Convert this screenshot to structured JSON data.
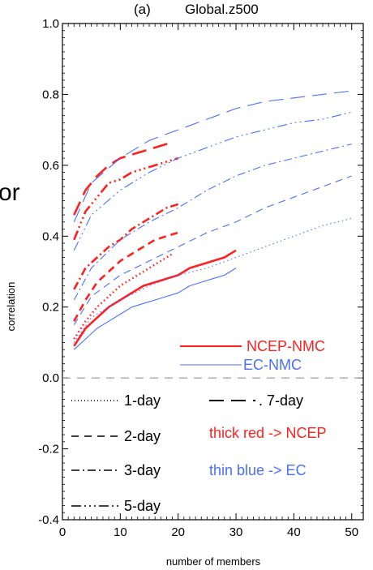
{
  "colors": {
    "ncep": "#ff2020",
    "ec": "#4a6fff",
    "axis": "#000000",
    "zero": "#888888"
  },
  "panel_label": "(a)",
  "overflow_glyph": "or",
  "chart_data": {
    "type": "line",
    "title": "Global.z500",
    "xlabel": "number of members",
    "ylabel": "correlation",
    "xlim": [
      0,
      52
    ],
    "ylim": [
      -0.4,
      1.0
    ],
    "xticks": [
      0,
      10,
      20,
      30,
      40,
      50
    ],
    "yticks": [
      -0.4,
      -0.2,
      0.0,
      0.2,
      0.4,
      0.6,
      0.8,
      1.0
    ],
    "ytick_labels": [
      "-0.4",
      "-0.2",
      "0.0",
      "0.2",
      "0.4",
      "0.6",
      "0.8",
      "1.0"
    ],
    "series": [
      {
        "name": "NCEP-NMC",
        "lead": "1-day",
        "source": "ncep",
        "x": [
          2,
          4,
          6,
          8,
          10,
          12,
          14,
          16,
          18,
          19
        ],
        "y": [
          0.11,
          0.16,
          0.2,
          0.23,
          0.26,
          0.28,
          0.3,
          0.32,
          0.34,
          0.35
        ]
      },
      {
        "name": "NCEP-NMC",
        "lead": "2-day",
        "source": "ncep",
        "x": [
          2,
          4,
          6,
          8,
          10,
          12,
          14,
          16,
          18,
          20
        ],
        "y": [
          0.16,
          0.22,
          0.27,
          0.3,
          0.33,
          0.35,
          0.37,
          0.39,
          0.4,
          0.41
        ]
      },
      {
        "name": "NCEP-NMC",
        "lead": "3-day",
        "source": "ncep",
        "x": [
          2,
          4,
          6,
          8,
          10,
          12,
          14,
          16,
          18,
          20
        ],
        "y": [
          0.25,
          0.31,
          0.34,
          0.37,
          0.39,
          0.42,
          0.44,
          0.46,
          0.48,
          0.49
        ]
      },
      {
        "name": "NCEP-NMC",
        "lead": "5-day",
        "source": "ncep",
        "x": [
          2,
          4,
          6,
          8,
          10,
          12,
          14,
          16,
          18,
          20
        ],
        "y": [
          0.39,
          0.47,
          0.51,
          0.55,
          0.56,
          0.58,
          0.59,
          0.6,
          0.61,
          0.62
        ]
      },
      {
        "name": "NCEP-NMC",
        "lead": "7-day",
        "source": "ncep",
        "x": [
          2,
          4,
          6,
          8,
          10,
          12,
          14,
          16,
          18,
          19
        ],
        "y": [
          0.46,
          0.53,
          0.57,
          0.6,
          0.62,
          0.63,
          0.64,
          0.65,
          0.66,
          0.665
        ]
      },
      {
        "name": "NCEP-NMC",
        "lead": "day1-solid",
        "source": "ncep",
        "x": [
          2,
          4,
          6,
          8,
          10,
          12,
          14,
          16,
          18,
          20,
          22,
          24,
          26,
          28,
          30
        ],
        "y": [
          0.09,
          0.14,
          0.17,
          0.2,
          0.22,
          0.24,
          0.26,
          0.27,
          0.28,
          0.29,
          0.31,
          0.32,
          0.33,
          0.34,
          0.36
        ]
      },
      {
        "name": "EC-NMC",
        "lead": "day1-solid",
        "source": "ec",
        "x": [
          2,
          4,
          6,
          8,
          10,
          12,
          14,
          16,
          18,
          20,
          22,
          24,
          26,
          28,
          30
        ],
        "y": [
          0.08,
          0.11,
          0.14,
          0.16,
          0.18,
          0.2,
          0.21,
          0.22,
          0.23,
          0.24,
          0.26,
          0.27,
          0.28,
          0.29,
          0.31
        ]
      },
      {
        "name": "EC-NMC",
        "lead": "1-day",
        "source": "ec",
        "x": [
          2,
          5,
          10,
          15,
          20,
          25,
          30,
          35,
          40,
          45,
          50
        ],
        "y": [
          0.1,
          0.17,
          0.22,
          0.26,
          0.29,
          0.31,
          0.34,
          0.37,
          0.4,
          0.43,
          0.45
        ]
      },
      {
        "name": "EC-NMC",
        "lead": "2-day",
        "source": "ec",
        "x": [
          2,
          5,
          10,
          15,
          20,
          25,
          30,
          35,
          40,
          45,
          50
        ],
        "y": [
          0.15,
          0.23,
          0.29,
          0.33,
          0.37,
          0.41,
          0.44,
          0.48,
          0.51,
          0.54,
          0.57
        ]
      },
      {
        "name": "EC-NMC",
        "lead": "3-day",
        "source": "ec",
        "x": [
          2,
          5,
          10,
          15,
          20,
          25,
          30,
          35,
          40,
          45,
          50
        ],
        "y": [
          0.22,
          0.31,
          0.39,
          0.44,
          0.48,
          0.53,
          0.57,
          0.6,
          0.62,
          0.64,
          0.66
        ]
      },
      {
        "name": "EC-NMC",
        "lead": "5-day",
        "source": "ec",
        "x": [
          2,
          5,
          10,
          15,
          20,
          25,
          30,
          35,
          40,
          45,
          50
        ],
        "y": [
          0.36,
          0.46,
          0.53,
          0.58,
          0.62,
          0.65,
          0.68,
          0.7,
          0.72,
          0.73,
          0.75
        ]
      },
      {
        "name": "EC-NMC",
        "lead": "7-day",
        "source": "ec",
        "x": [
          2,
          5,
          10,
          15,
          20,
          25,
          30,
          35,
          40,
          45,
          50
        ],
        "y": [
          0.44,
          0.55,
          0.62,
          0.67,
          0.7,
          0.73,
          0.76,
          0.78,
          0.79,
          0.8,
          0.81
        ]
      }
    ],
    "legend": {
      "ncep_label": "NCEP-NMC",
      "ec_label": "EC-NMC",
      "lead_labels": {
        "d1": "1-day",
        "d2": "2-day",
        "d3": "3-day",
        "d5": "5-day",
        "d7": ". 7-day"
      },
      "note_red": "thick red -> NCEP",
      "note_blue": "thin blue -> EC"
    },
    "zero_line": 0.0,
    "grid": false
  }
}
